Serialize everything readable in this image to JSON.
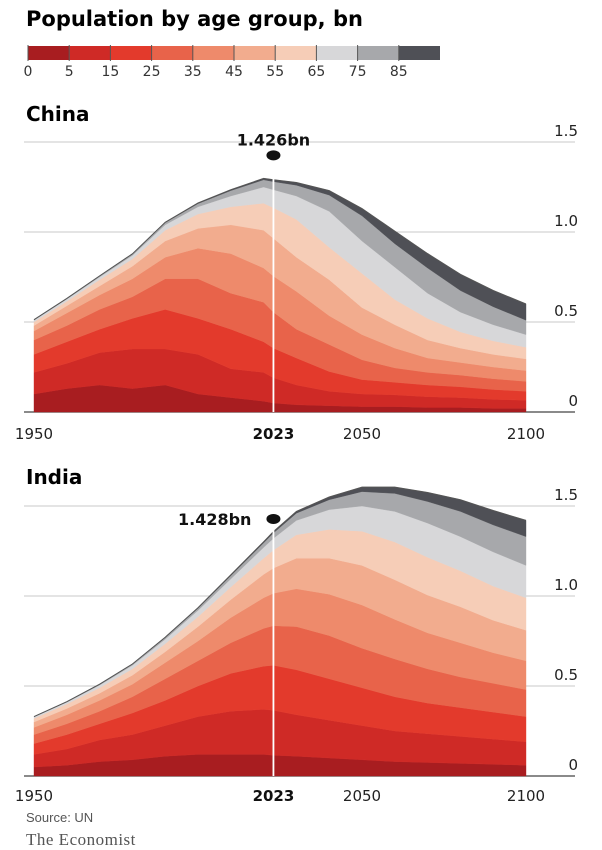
{
  "title": "Population by age group, bn",
  "legend": {
    "labels": [
      "0",
      "5",
      "15",
      "25",
      "35",
      "45",
      "55",
      "65",
      "75",
      "85"
    ],
    "colors": [
      "#a81d20",
      "#cf2a26",
      "#e33a2c",
      "#e8634a",
      "#ee8a6b",
      "#f2ac8e",
      "#f6cdb7",
      "#d7d7d9",
      "#a7a8ab",
      "#4f5056"
    ]
  },
  "source": "Source: UN",
  "brand": "The Economist",
  "chart_data": [
    {
      "type": "area",
      "title": "China",
      "x_ticks": [
        "1950",
        "2023",
        "2050",
        "2100"
      ],
      "x_tick_bold": "2023",
      "y_ticks": [
        "0",
        "0.5",
        "1.0",
        "1.5"
      ],
      "xlim": [
        1950,
        2100
      ],
      "ylim": [
        0,
        1.5
      ],
      "marker": {
        "x": 2023,
        "y": 1.426,
        "label": "1.426bn"
      },
      "x": [
        1950,
        1960,
        1970,
        1980,
        1990,
        2000,
        2010,
        2020,
        2023,
        2030,
        2040,
        2050,
        2060,
        2070,
        2080,
        2090,
        2100
      ],
      "series": [
        {
          "values": [
            0.1,
            0.13,
            0.15,
            0.13,
            0.15,
            0.1,
            0.08,
            0.06,
            0.05,
            0.04,
            0.035,
            0.03,
            0.03,
            0.025,
            0.025,
            0.02,
            0.02
          ]
        },
        {
          "values": [
            0.12,
            0.14,
            0.18,
            0.22,
            0.2,
            0.22,
            0.16,
            0.16,
            0.14,
            0.11,
            0.08,
            0.07,
            0.065,
            0.06,
            0.055,
            0.05,
            0.045
          ]
        },
        {
          "values": [
            0.1,
            0.12,
            0.13,
            0.17,
            0.22,
            0.2,
            0.22,
            0.17,
            0.165,
            0.15,
            0.11,
            0.08,
            0.07,
            0.065,
            0.06,
            0.055,
            0.05
          ]
        },
        {
          "values": [
            0.08,
            0.09,
            0.11,
            0.12,
            0.17,
            0.22,
            0.2,
            0.22,
            0.2,
            0.16,
            0.15,
            0.11,
            0.08,
            0.07,
            0.065,
            0.06,
            0.055
          ]
        },
        {
          "values": [
            0.05,
            0.07,
            0.08,
            0.1,
            0.12,
            0.17,
            0.22,
            0.19,
            0.2,
            0.21,
            0.16,
            0.14,
            0.11,
            0.08,
            0.07,
            0.065,
            0.06
          ]
        },
        {
          "values": [
            0.03,
            0.04,
            0.05,
            0.07,
            0.09,
            0.11,
            0.16,
            0.21,
            0.21,
            0.19,
            0.2,
            0.15,
            0.13,
            0.1,
            0.08,
            0.07,
            0.065
          ]
        },
        {
          "values": [
            0.02,
            0.025,
            0.035,
            0.04,
            0.06,
            0.08,
            0.1,
            0.15,
            0.17,
            0.21,
            0.18,
            0.19,
            0.14,
            0.12,
            0.09,
            0.075,
            0.065
          ]
        },
        {
          "values": [
            0.01,
            0.012,
            0.015,
            0.02,
            0.03,
            0.04,
            0.06,
            0.09,
            0.1,
            0.13,
            0.2,
            0.18,
            0.18,
            0.14,
            0.11,
            0.09,
            0.07
          ]
        },
        {
          "values": [
            0.003,
            0.004,
            0.005,
            0.008,
            0.012,
            0.018,
            0.03,
            0.04,
            0.045,
            0.06,
            0.09,
            0.14,
            0.13,
            0.14,
            0.12,
            0.1,
            0.08
          ]
        },
        {
          "values": [
            0.0,
            0.0,
            0.001,
            0.001,
            0.002,
            0.003,
            0.005,
            0.008,
            0.01,
            0.015,
            0.025,
            0.04,
            0.07,
            0.08,
            0.09,
            0.09,
            0.09
          ]
        }
      ]
    },
    {
      "type": "area",
      "title": "India",
      "x_ticks": [
        "1950",
        "2023",
        "2050",
        "2100"
      ],
      "x_tick_bold": "2023",
      "y_ticks": [
        "0",
        "0.5",
        "1.0",
        "1.5"
      ],
      "xlim": [
        1950,
        2100
      ],
      "ylim": [
        0,
        1.5
      ],
      "marker": {
        "x": 2023,
        "y": 1.428,
        "label": "1.428bn"
      },
      "x": [
        1950,
        1960,
        1970,
        1980,
        1990,
        2000,
        2010,
        2020,
        2023,
        2030,
        2040,
        2050,
        2060,
        2070,
        2080,
        2090,
        2100
      ],
      "series": [
        {
          "values": [
            0.05,
            0.06,
            0.08,
            0.09,
            0.11,
            0.12,
            0.12,
            0.12,
            0.115,
            0.11,
            0.1,
            0.09,
            0.08,
            0.075,
            0.07,
            0.065,
            0.06
          ]
        },
        {
          "values": [
            0.07,
            0.09,
            0.12,
            0.14,
            0.17,
            0.21,
            0.24,
            0.25,
            0.25,
            0.23,
            0.21,
            0.19,
            0.17,
            0.16,
            0.15,
            0.14,
            0.13
          ]
        },
        {
          "values": [
            0.06,
            0.08,
            0.09,
            0.12,
            0.14,
            0.17,
            0.21,
            0.24,
            0.25,
            0.25,
            0.23,
            0.21,
            0.19,
            0.17,
            0.16,
            0.15,
            0.14
          ]
        },
        {
          "values": [
            0.05,
            0.06,
            0.07,
            0.09,
            0.12,
            0.14,
            0.17,
            0.21,
            0.22,
            0.24,
            0.24,
            0.22,
            0.21,
            0.19,
            0.17,
            0.16,
            0.15
          ]
        },
        {
          "values": [
            0.04,
            0.05,
            0.06,
            0.07,
            0.09,
            0.11,
            0.14,
            0.17,
            0.18,
            0.21,
            0.23,
            0.24,
            0.22,
            0.2,
            0.19,
            0.17,
            0.16
          ]
        },
        {
          "values": [
            0.03,
            0.035,
            0.04,
            0.05,
            0.06,
            0.08,
            0.1,
            0.13,
            0.14,
            0.17,
            0.2,
            0.22,
            0.22,
            0.21,
            0.2,
            0.18,
            0.17
          ]
        },
        {
          "values": [
            0.02,
            0.025,
            0.03,
            0.035,
            0.045,
            0.055,
            0.07,
            0.09,
            0.1,
            0.13,
            0.16,
            0.19,
            0.21,
            0.21,
            0.2,
            0.19,
            0.18
          ]
        },
        {
          "values": [
            0.008,
            0.01,
            0.015,
            0.02,
            0.025,
            0.035,
            0.045,
            0.06,
            0.065,
            0.08,
            0.11,
            0.14,
            0.17,
            0.19,
            0.19,
            0.19,
            0.18
          ]
        },
        {
          "values": [
            0.002,
            0.003,
            0.004,
            0.006,
            0.009,
            0.012,
            0.018,
            0.025,
            0.03,
            0.04,
            0.055,
            0.08,
            0.1,
            0.12,
            0.14,
            0.15,
            0.16
          ]
        },
        {
          "values": [
            0.0,
            0.0,
            0.001,
            0.001,
            0.002,
            0.003,
            0.004,
            0.006,
            0.008,
            0.01,
            0.015,
            0.025,
            0.035,
            0.05,
            0.065,
            0.08,
            0.09
          ]
        }
      ]
    }
  ]
}
